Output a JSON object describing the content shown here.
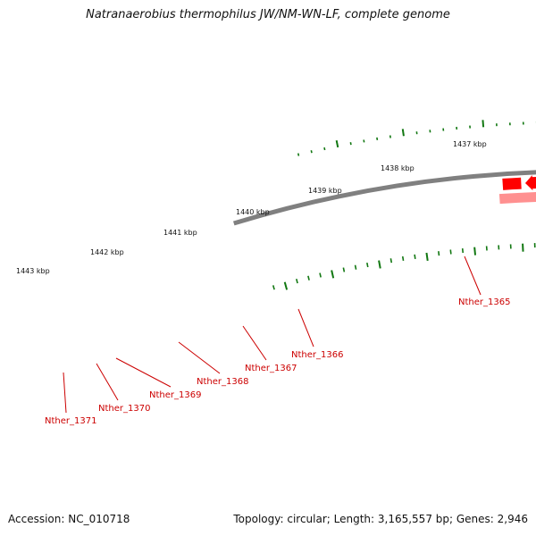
{
  "title": "Natranaerobius thermophilus JW/NM-WN-LF, complete genome",
  "footer": {
    "accession": "Accession: NC_010718",
    "summary": "Topology: circular; Length: 3,165,557 bp; Genes: 2,946"
  },
  "ruler_labels": [
    "1437 kbp",
    "1438 kbp",
    "1439 kbp",
    "1440 kbp",
    "1441 kbp",
    "1442 kbp",
    "1443 kbp"
  ],
  "gene_labels": [
    "Nther_1365",
    "Nther_1366",
    "Nther_1367",
    "Nther_1368",
    "Nther_1369",
    "Nther_1370",
    "Nther_1371"
  ],
  "colors": {
    "cds": "#ff0000",
    "cds_light": "#ff9090",
    "backbone": "#808080",
    "tick": "#117711",
    "cog_green": "#b4ff3c",
    "cog_yellow": "#f2e6a0",
    "cog_dark": "#666666",
    "cog_grey": "#bbbbbb",
    "label": "#cc0000"
  }
}
